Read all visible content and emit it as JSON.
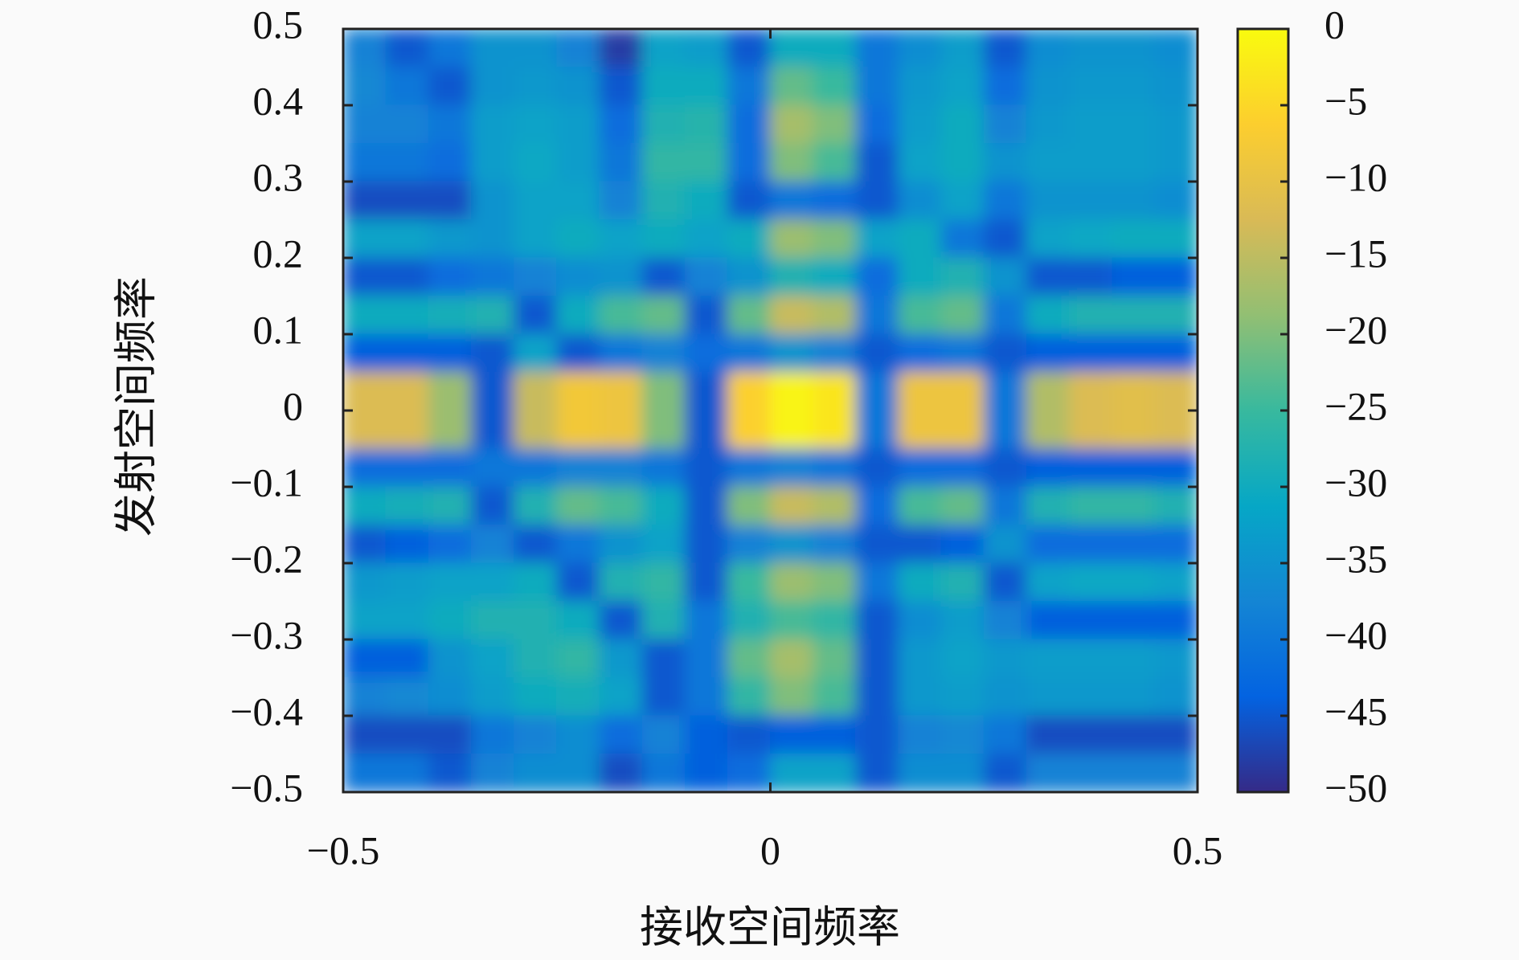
{
  "chart_data": {
    "type": "heatmap",
    "xlabel": "接收空间频率",
    "ylabel": "发射空间频率",
    "colormap": "parula",
    "x": [
      -0.475,
      -0.425,
      -0.375,
      -0.325,
      -0.275,
      -0.225,
      -0.175,
      -0.125,
      -0.075,
      -0.025,
      0.025,
      0.075,
      0.125,
      0.175,
      0.225,
      0.275,
      0.325,
      0.375,
      0.425,
      0.475
    ],
    "y": [
      0.475,
      0.425,
      0.375,
      0.325,
      0.275,
      0.225,
      0.175,
      0.125,
      0.075,
      0.025,
      -0.025,
      -0.075,
      -0.125,
      -0.175,
      -0.225,
      -0.275,
      -0.325,
      -0.375,
      -0.425,
      -0.475
    ],
    "z": [
      [
        -38,
        -45,
        -40,
        -35,
        -35,
        -38,
        -48,
        -32,
        -33,
        -45,
        -30,
        -30,
        -40,
        -36,
        -33,
        -45,
        -36,
        -35,
        -35,
        -36
      ],
      [
        -37,
        -40,
        -45,
        -35,
        -34,
        -35,
        -45,
        -30,
        -30,
        -40,
        -22,
        -25,
        -40,
        -34,
        -32,
        -42,
        -35,
        -34,
        -34,
        -35
      ],
      [
        -38,
        -38,
        -40,
        -33,
        -32,
        -33,
        -42,
        -28,
        -27,
        -42,
        -17,
        -20,
        -42,
        -33,
        -30,
        -38,
        -34,
        -33,
        -33,
        -34
      ],
      [
        -40,
        -40,
        -42,
        -33,
        -31,
        -33,
        -40,
        -26,
        -26,
        -42,
        -20,
        -24,
        -45,
        -32,
        -30,
        -35,
        -33,
        -33,
        -33,
        -34
      ],
      [
        -46,
        -46,
        -46,
        -35,
        -32,
        -32,
        -38,
        -28,
        -30,
        -45,
        -40,
        -42,
        -45,
        -36,
        -32,
        -40,
        -35,
        -35,
        -35,
        -36
      ],
      [
        -32,
        -32,
        -34,
        -35,
        -32,
        -30,
        -32,
        -30,
        -32,
        -30,
        -18,
        -20,
        -32,
        -30,
        -40,
        -45,
        -32,
        -31,
        -30,
        -30
      ],
      [
        -45,
        -45,
        -42,
        -40,
        -38,
        -36,
        -35,
        -45,
        -38,
        -35,
        -28,
        -30,
        -42,
        -30,
        -28,
        -35,
        -45,
        -45,
        -44,
        -44
      ],
      [
        -30,
        -30,
        -29,
        -28,
        -45,
        -30,
        -24,
        -22,
        -45,
        -22,
        -14,
        -16,
        -40,
        -24,
        -22,
        -40,
        -30,
        -28,
        -28,
        -28
      ],
      [
        -44,
        -44,
        -44,
        -45,
        -32,
        -45,
        -40,
        -38,
        -42,
        -40,
        -35,
        -38,
        -45,
        -42,
        -40,
        -45,
        -44,
        -44,
        -44,
        -44
      ],
      [
        -12,
        -12,
        -18,
        -45,
        -14,
        -8,
        -9,
        -20,
        -45,
        -6,
        -1,
        -3,
        -40,
        -9,
        -9,
        -40,
        -16,
        -12,
        -11,
        -12
      ],
      [
        -12,
        -12,
        -18,
        -45,
        -14,
        -8,
        -9,
        -20,
        -45,
        -6,
        -1,
        -3,
        -40,
        -9,
        -9,
        -40,
        -16,
        -12,
        -11,
        -12
      ],
      [
        -42,
        -42,
        -42,
        -40,
        -40,
        -38,
        -38,
        -40,
        -45,
        -40,
        -38,
        -40,
        -45,
        -42,
        -42,
        -45,
        -44,
        -44,
        -44,
        -44
      ],
      [
        -30,
        -29,
        -28,
        -45,
        -28,
        -22,
        -24,
        -30,
        -45,
        -20,
        -14,
        -16,
        -42,
        -24,
        -22,
        -40,
        -28,
        -26,
        -26,
        -28
      ],
      [
        -45,
        -44,
        -42,
        -38,
        -45,
        -40,
        -35,
        -32,
        -45,
        -38,
        -35,
        -38,
        -45,
        -45,
        -44,
        -35,
        -42,
        -42,
        -42,
        -42
      ],
      [
        -34,
        -33,
        -32,
        -32,
        -30,
        -45,
        -28,
        -26,
        -45,
        -25,
        -18,
        -20,
        -40,
        -30,
        -28,
        -45,
        -32,
        -31,
        -31,
        -32
      ],
      [
        -32,
        -32,
        -30,
        -28,
        -28,
        -30,
        -45,
        -28,
        -40,
        -28,
        -24,
        -26,
        -45,
        -36,
        -33,
        -38,
        -44,
        -44,
        -44,
        -44
      ],
      [
        -44,
        -44,
        -35,
        -32,
        -28,
        -26,
        -34,
        -45,
        -40,
        -22,
        -17,
        -22,
        -45,
        -34,
        -32,
        -34,
        -33,
        -33,
        -33,
        -34
      ],
      [
        -38,
        -37,
        -36,
        -33,
        -30,
        -29,
        -32,
        -45,
        -40,
        -26,
        -20,
        -24,
        -45,
        -34,
        -33,
        -35,
        -34,
        -34,
        -34,
        -35
      ],
      [
        -46,
        -46,
        -46,
        -40,
        -38,
        -36,
        -42,
        -38,
        -44,
        -45,
        -44,
        -44,
        -45,
        -38,
        -37,
        -40,
        -46,
        -46,
        -46,
        -46
      ],
      [
        -40,
        -40,
        -45,
        -38,
        -36,
        -36,
        -46,
        -40,
        -44,
        -42,
        -32,
        -32,
        -45,
        -36,
        -36,
        -45,
        -38,
        -38,
        -38,
        -38
      ]
    ],
    "xlim": [
      -0.5,
      0.5
    ],
    "xticks": [
      {
        "value": -0.5,
        "label": "−0.5"
      },
      0,
      0.5
    ],
    "ylim": [
      -0.5,
      0.5
    ],
    "yticks": [
      0.5,
      0.4,
      0.3,
      0.2,
      0.1,
      0,
      {
        "value": -0.1,
        "label": "−0.1"
      },
      {
        "value": -0.2,
        "label": "−0.2"
      },
      {
        "value": -0.3,
        "label": "−0.3"
      },
      {
        "value": -0.4,
        "label": "−0.4"
      },
      {
        "value": -0.5,
        "label": "−0.5"
      }
    ],
    "clim": [
      -50,
      0
    ],
    "cticks": [
      0,
      {
        "value": -5,
        "label": "−5"
      },
      {
        "value": -10,
        "label": "−10"
      },
      {
        "value": -15,
        "label": "−15"
      },
      {
        "value": -20,
        "label": "−20"
      },
      {
        "value": -25,
        "label": "−25"
      },
      {
        "value": -30,
        "label": "−30"
      },
      {
        "value": -35,
        "label": "−35"
      },
      {
        "value": -40,
        "label": "−40"
      },
      {
        "value": -45,
        "label": "−45"
      },
      {
        "value": -50,
        "label": "−50"
      }
    ]
  }
}
